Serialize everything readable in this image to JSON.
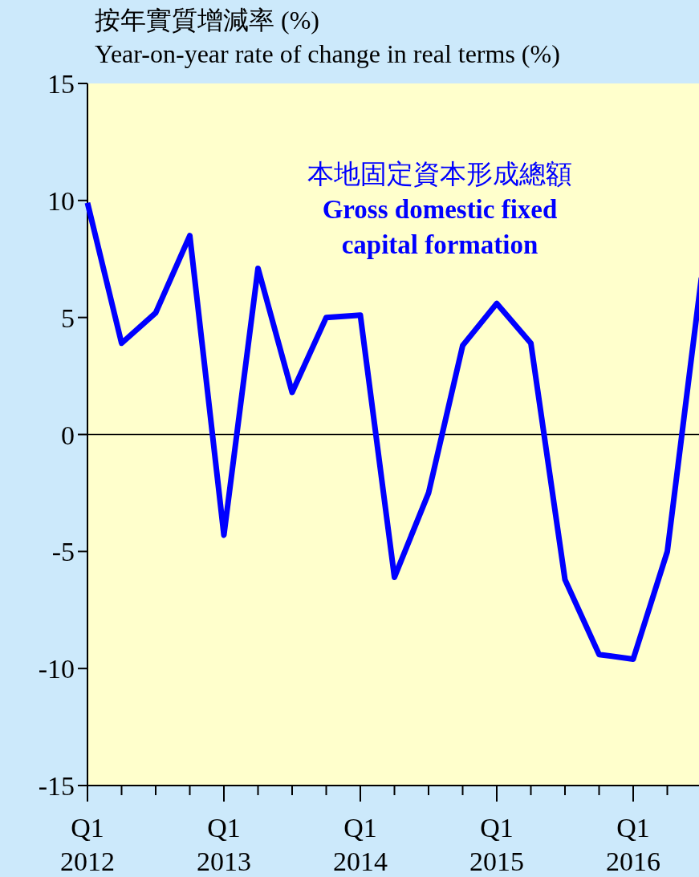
{
  "chart_data": {
    "type": "line",
    "ylabel": "按年實質增減率 (%)\nYear-on-year rate of change in real terms (%)",
    "categories": [
      "Q1\n2012",
      null,
      null,
      null,
      "Q1\n2013",
      null,
      null,
      null,
      "Q1\n2014",
      null,
      null,
      null,
      "Q1\n2015",
      null,
      null,
      null,
      "Q1\n2016",
      null,
      null
    ],
    "series": [
      {
        "name": "本地固定資本形成總額\n**Gross domestic fixed\ncapital formation**",
        "color": "#0000ff",
        "values": [
          9.9,
          3.9,
          5.2,
          8.5,
          -4.3,
          7.1,
          1.8,
          5.0,
          5.1,
          -6.1,
          -2.5,
          3.8,
          5.6,
          3.9,
          -6.2,
          -9.4,
          -9.6,
          -5.0,
          6.7
        ]
      }
    ],
    "ylim": [
      -15,
      15
    ],
    "yticks": [
      -15,
      -10,
      -5,
      0,
      5,
      10,
      15
    ],
    "ref_lines": [
      {
        "axis": "y",
        "value": 0,
        "color": "#000000"
      }
    ],
    "marker": "none",
    "line_style": "solid"
  }
}
